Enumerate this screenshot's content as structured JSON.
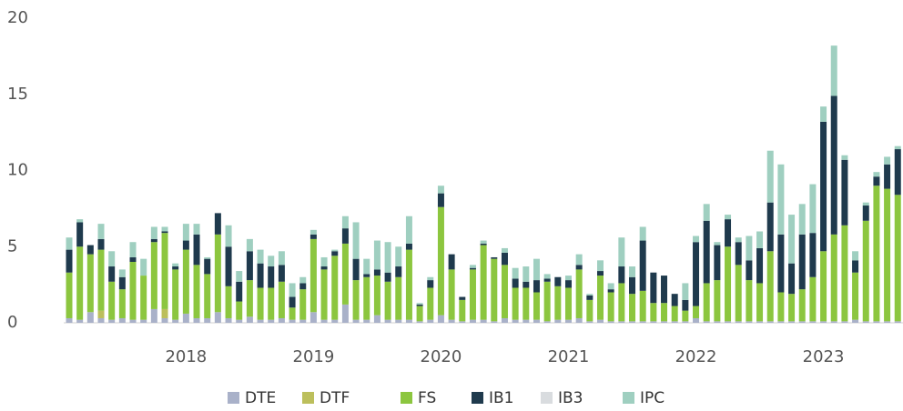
{
  "chart_data": {
    "type": "stacked_bar",
    "categories": [
      null,
      null,
      null,
      null,
      null,
      null,
      null,
      null,
      null,
      null,
      null,
      "2018",
      null,
      null,
      null,
      null,
      null,
      null,
      null,
      null,
      null,
      null,
      null,
      "2019",
      null,
      null,
      null,
      null,
      null,
      null,
      null,
      null,
      null,
      null,
      null,
      "2020",
      null,
      null,
      null,
      null,
      null,
      null,
      null,
      null,
      null,
      null,
      null,
      "2021",
      null,
      null,
      null,
      null,
      null,
      null,
      null,
      null,
      null,
      null,
      null,
      "2022",
      null,
      null,
      null,
      null,
      null,
      null,
      null,
      null,
      null,
      null,
      null,
      "2023",
      null,
      null,
      null,
      null,
      null,
      null,
      null
    ],
    "series": [
      {
        "name": "DTE",
        "color": "#a9b1c9",
        "values": [
          0.3,
          0.2,
          0.7,
          0.3,
          0.2,
          0.3,
          0.2,
          0.2,
          0.9,
          0.3,
          0.2,
          0.6,
          0.3,
          0.3,
          0.7,
          0.3,
          0.2,
          0.4,
          0.2,
          0.2,
          0.3,
          0.2,
          0.2,
          0.7,
          0.2,
          0.2,
          1.2,
          0.2,
          0.2,
          0.5,
          0.2,
          0.2,
          0.2,
          0.1,
          0.2,
          0.5,
          0.2,
          0.1,
          0.2,
          0.2,
          0.1,
          0.3,
          0.2,
          0.2,
          0.2,
          0.1,
          0.2,
          0.2,
          0.3,
          0.1,
          0.2,
          0.1,
          0.1,
          0.1,
          0.1,
          0.1,
          0.1,
          0.1,
          0.1,
          0.3,
          0.1,
          0.1,
          0.1,
          0.1,
          0.1,
          0.1,
          0.1,
          0.1,
          0.1,
          0.1,
          0.1,
          0.1,
          0.1,
          0.1,
          0.2,
          0.1,
          0.1,
          0.1,
          0.1
        ]
      },
      {
        "name": "DTF",
        "color": "#bcbf5c",
        "values": [
          0,
          0,
          0,
          0.5,
          0,
          0,
          0,
          0,
          0,
          0.6,
          0,
          0,
          0,
          0,
          0,
          0,
          0,
          0,
          0,
          0,
          0,
          0,
          0,
          0,
          0,
          0,
          0,
          0,
          0,
          0,
          0,
          0,
          0,
          0,
          0,
          0,
          0,
          0,
          0,
          0,
          0,
          0,
          0,
          0,
          0,
          0,
          0,
          0,
          0,
          0,
          0,
          0,
          0,
          0,
          0,
          0,
          0,
          0,
          0,
          0,
          0,
          0,
          0,
          0,
          0,
          0,
          0,
          0,
          0,
          0,
          0,
          0,
          0,
          0,
          0,
          0,
          0,
          0,
          0
        ]
      },
      {
        "name": "FS",
        "color": "#8cc63f",
        "values": [
          3.0,
          4.8,
          3.8,
          4.0,
          2.5,
          1.9,
          3.8,
          2.9,
          4.4,
          5.0,
          3.3,
          4.2,
          3.5,
          2.9,
          5.1,
          2.1,
          1.2,
          2.4,
          2.1,
          2.1,
          2.4,
          0.8,
          2.0,
          4.8,
          3.3,
          4.2,
          4.0,
          2.6,
          2.8,
          2.6,
          2.5,
          2.8,
          4.6,
          1.0,
          2.1,
          7.1,
          3.3,
          1.4,
          3.3,
          4.9,
          4.1,
          3.5,
          2.1,
          2.1,
          1.8,
          2.6,
          2.2,
          2.1,
          3.2,
          1.4,
          2.9,
          1.9,
          2.5,
          1.8,
          2.0,
          1.2,
          1.2,
          1.0,
          0.7,
          0.8,
          2.5,
          2.7,
          4.9,
          3.7,
          2.7,
          2.5,
          4.6,
          1.9,
          1.8,
          2.1,
          2.9,
          4.6,
          5.7,
          6.3,
          3.1,
          6.6,
          8.9,
          8.7,
          8.3
        ]
      },
      {
        "name": "IB1",
        "color": "#1f3a4d",
        "values": [
          1.5,
          1.6,
          0.6,
          0.7,
          1.0,
          0.8,
          0.3,
          0,
          0.2,
          0.1,
          0.2,
          0.6,
          2.0,
          1.0,
          1.4,
          2.6,
          1.3,
          1.9,
          1.6,
          1.4,
          1.1,
          0.7,
          0.4,
          0.3,
          0.2,
          0.3,
          1.0,
          1.4,
          0.2,
          0.4,
          0.6,
          0.7,
          0.4,
          0.1,
          0.5,
          0.9,
          1.0,
          0.2,
          0.1,
          0.1,
          0.1,
          0.8,
          0.6,
          0.4,
          0.8,
          0.2,
          0.6,
          0.5,
          0.3,
          0.3,
          0.3,
          0.2,
          1.1,
          1.1,
          3.3,
          2.0,
          1.8,
          0.8,
          0.7,
          4.2,
          4.1,
          2.3,
          1.8,
          1.5,
          1.3,
          2.3,
          3.2,
          3.8,
          2.0,
          3.6,
          2.9,
          8.5,
          9.1,
          4.3,
          0.8,
          1.0,
          0.6,
          1.6,
          3.0
        ]
      },
      {
        "name": "IB3",
        "color": "#d9dcdf",
        "values": [
          0,
          0,
          0,
          0,
          0,
          0,
          0,
          0,
          0,
          0,
          0,
          0,
          0,
          0,
          0,
          0,
          0,
          0,
          0,
          0,
          0,
          0,
          0,
          0,
          0,
          0,
          0,
          0,
          0,
          0,
          0,
          0,
          0,
          0,
          0,
          0,
          0,
          0,
          0,
          0,
          0,
          0,
          0,
          0,
          0,
          0,
          0,
          0,
          0,
          0,
          0,
          0,
          0,
          0,
          0,
          0,
          0,
          0,
          0,
          0,
          0,
          0,
          0,
          0,
          0,
          0,
          0,
          0,
          0,
          0,
          0,
          0,
          0,
          0,
          0,
          0,
          0,
          0,
          0
        ]
      },
      {
        "name": "IPC",
        "color": "#9fcfc0",
        "values": [
          0.8,
          0.2,
          0,
          1.0,
          1.0,
          0.5,
          1.0,
          1.1,
          0.8,
          0.3,
          0.2,
          1.1,
          0.7,
          0.1,
          0,
          1.4,
          0.7,
          0.8,
          0.9,
          0.7,
          0.9,
          0.9,
          0.4,
          0.3,
          0.6,
          0.1,
          0.8,
          2.4,
          1.0,
          1.9,
          2.0,
          1.3,
          1.8,
          0.1,
          0.2,
          0.5,
          0,
          0,
          0.2,
          0.2,
          0,
          0.3,
          0.7,
          1.0,
          1.4,
          0.3,
          0,
          0.3,
          0.7,
          0.1,
          0.7,
          0.4,
          1.9,
          0.7,
          0.9,
          0,
          0,
          0,
          1.1,
          0.4,
          1.1,
          0.2,
          0.3,
          0.3,
          1.6,
          1.1,
          3.4,
          4.6,
          3.2,
          2.0,
          3.2,
          1.0,
          3.3,
          0.3,
          0.6,
          0.2,
          0.3,
          0.5,
          0.2
        ]
      }
    ],
    "ylim": [
      0,
      20
    ],
    "yticks": [
      0,
      5,
      10,
      15,
      20
    ],
    "legend": "bottom"
  }
}
